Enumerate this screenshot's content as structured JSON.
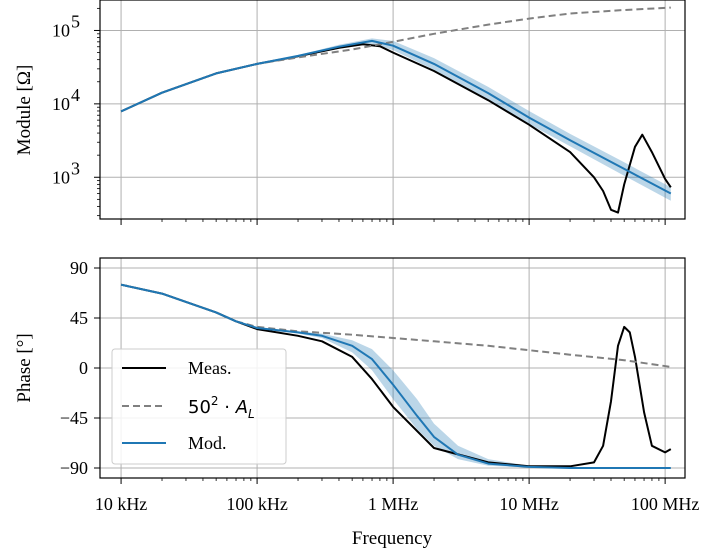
{
  "chart_data": [
    {
      "type": "line",
      "ylabel": "Module [Ω]",
      "xscale": "log",
      "yscale": "log",
      "xlim": [
        7000,
        140000000
      ],
      "ylim": [
        270,
        260000
      ],
      "grid": true,
      "y_ticks": [
        {
          "value": 1000,
          "base": "10",
          "exp": "3"
        },
        {
          "value": 10000,
          "base": "10",
          "exp": "4"
        },
        {
          "value": 100000,
          "base": "10",
          "exp": "5"
        }
      ],
      "x_ticks": [
        10000,
        100000,
        1000000,
        10000000,
        100000000
      ],
      "series": [
        {
          "name": "Meas.",
          "color": "#000000",
          "dash": "solid",
          "x": [
            10000,
            20000,
            50000,
            100000,
            200000,
            400000,
            600000,
            800000,
            1000000,
            2000000,
            5000000,
            10000000,
            20000000,
            30000000,
            35000000,
            40000000,
            45000000,
            50000000,
            60000000,
            68000000,
            80000000,
            100000000,
            110000000
          ],
          "y": [
            7900,
            14200,
            26000,
            35000,
            44500,
            58000,
            65000,
            61000,
            50000,
            28000,
            11200,
            5200,
            2200,
            1000,
            650,
            360,
            330,
            800,
            2600,
            3800,
            2200,
            950,
            730
          ]
        },
        {
          "name": "50²·A_L",
          "color": "#808080",
          "dash": "dashed",
          "x": [
            10000,
            20000,
            50000,
            100000,
            200000,
            500000,
            1000000,
            2000000,
            5000000,
            10000000,
            20000000,
            50000000,
            110000000
          ],
          "y": [
            7900,
            14200,
            26000,
            35000,
            43000,
            55000,
            70000,
            90000,
            120000,
            145000,
            170000,
            190000,
            205000
          ]
        },
        {
          "name": "Mod.",
          "color": "#1f77b4",
          "dash": "solid",
          "x": [
            10000,
            20000,
            50000,
            100000,
            200000,
            400000,
            700000,
            1000000,
            2000000,
            5000000,
            10000000,
            20000000,
            50000000,
            110000000
          ],
          "y": [
            7900,
            14200,
            26000,
            35000,
            45000,
            60000,
            72000,
            62000,
            35000,
            14000,
            6500,
            3200,
            1300,
            600
          ],
          "band_lower": [
            7900,
            14200,
            26000,
            35000,
            44000,
            56000,
            66000,
            54000,
            29000,
            11500,
            5300,
            2650,
            1050,
            480
          ],
          "band_upper": [
            7900,
            14200,
            26000,
            35000,
            46000,
            64000,
            78000,
            72000,
            42000,
            17000,
            8000,
            3900,
            1600,
            730
          ]
        }
      ]
    },
    {
      "type": "line",
      "ylabel": "Phase [°]",
      "xlabel": "Frequency",
      "xscale": "log",
      "xlim": [
        7000,
        140000000
      ],
      "ylim": [
        -99,
        99
      ],
      "grid": true,
      "y_ticks": [
        {
          "value": 90,
          "label": "90"
        },
        {
          "value": 45,
          "label": "45"
        },
        {
          "value": 0,
          "label": "0"
        },
        {
          "value": -45,
          "label": "−45"
        },
        {
          "value": -90,
          "label": "−90"
        }
      ],
      "x_ticks": [
        {
          "value": 10000,
          "label": "10 kHz"
        },
        {
          "value": 100000,
          "label": "100 kHz"
        },
        {
          "value": 1000000,
          "label": "1 MHz"
        },
        {
          "value": 10000000,
          "label": "10 MHz"
        },
        {
          "value": 100000000,
          "label": "100 MHz"
        }
      ],
      "legend": {
        "location": "lower-left",
        "entries": [
          "Meas.",
          "50²·A_L",
          "Mod."
        ]
      },
      "series": [
        {
          "name": "Meas.",
          "color": "#000000",
          "dash": "solid",
          "x": [
            10000,
            20000,
            50000,
            70000,
            100000,
            200000,
            300000,
            500000,
            700000,
            1000000,
            2000000,
            5000000,
            10000000,
            20000000,
            30000000,
            35000000,
            40000000,
            45000000,
            50000000,
            55000000,
            60000000,
            70000000,
            80000000,
            100000000,
            110000000
          ],
          "y": [
            75,
            67,
            50,
            42,
            35,
            29,
            24,
            10,
            -10,
            -35,
            -72,
            -85,
            -88.5,
            -88.5,
            -85,
            -70,
            -30,
            20,
            37,
            32,
            10,
            -40,
            -70,
            -76,
            -73
          ]
        },
        {
          "name": "50²·A_L",
          "color": "#808080",
          "dash": "dashed",
          "x": [
            10000,
            20000,
            50000,
            70000,
            100000,
            200000,
            500000,
            1000000,
            2000000,
            5000000,
            10000000,
            20000000,
            50000000,
            110000000
          ],
          "y": [
            75,
            67,
            50,
            42,
            37,
            33,
            30,
            27,
            24,
            20,
            16,
            12,
            7,
            1
          ]
        },
        {
          "name": "Mod.",
          "color": "#1f77b4",
          "dash": "solid",
          "x": [
            10000,
            20000,
            50000,
            70000,
            100000,
            200000,
            300000,
            500000,
            700000,
            1000000,
            1500000,
            2000000,
            3000000,
            5000000,
            10000000,
            20000000,
            50000000,
            110000000
          ],
          "y": [
            75,
            67,
            50,
            42,
            36,
            32,
            29,
            20,
            8,
            -15,
            -43,
            -62,
            -78,
            -86,
            -89,
            -90,
            -90,
            -90
          ],
          "band_lower": [
            75,
            67,
            50,
            42,
            36,
            31,
            27,
            14,
            -2,
            -28,
            -55,
            -70,
            -82,
            -88,
            -89.5,
            -90,
            -90,
            -90
          ],
          "band_upper": [
            75,
            67,
            50,
            42,
            36,
            33,
            31,
            25,
            17,
            -2,
            -28,
            -50,
            -70,
            -82,
            -88,
            -90,
            -90,
            -90
          ]
        }
      ]
    }
  ]
}
